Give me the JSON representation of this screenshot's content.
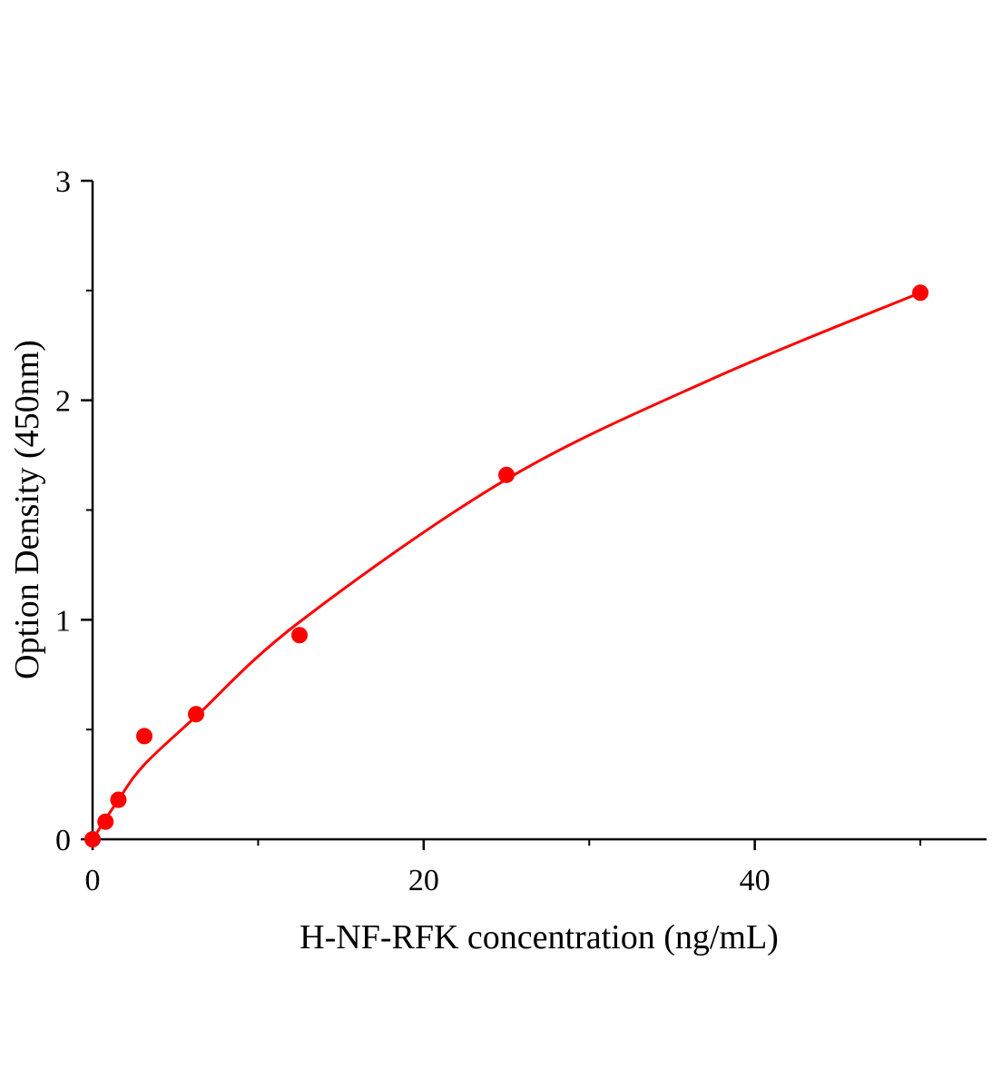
{
  "chart_data": {
    "type": "scatter",
    "title": "",
    "xlabel": "H-NF-RFK concentration (ng/mL)",
    "ylabel": "Option Density (450nm)",
    "xlim": [
      0,
      54
    ],
    "ylim": [
      0,
      3
    ],
    "x_ticks": [
      0,
      20,
      40
    ],
    "x_minor_ticks": [
      10,
      30,
      50
    ],
    "y_ticks": [
      0,
      1,
      2,
      3
    ],
    "y_minor_ticks": [
      0.5,
      1.5,
      2.5
    ],
    "grid": false,
    "color": "#ff0000",
    "points": {
      "x": [
        0,
        0.78,
        1.56,
        3.125,
        6.25,
        12.5,
        25,
        50
      ],
      "y": [
        0,
        0.08,
        0.18,
        0.47,
        0.57,
        0.93,
        1.66,
        2.49
      ]
    },
    "fit_curve": {
      "x": [
        0,
        1.56,
        3.125,
        6.25,
        12.5,
        25,
        37.5,
        50
      ],
      "y": [
        0,
        0.18,
        0.34,
        0.56,
        0.99,
        1.64,
        2.1,
        2.49
      ]
    }
  }
}
